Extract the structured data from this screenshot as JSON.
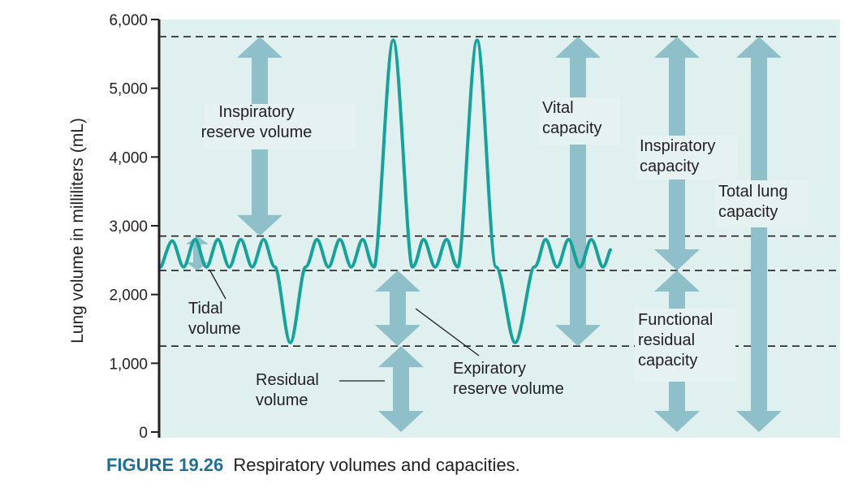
{
  "chart_data": {
    "type": "line",
    "ylabel": "Lung volume in milliliters (mL)",
    "ylim": [
      0,
      6000
    ],
    "yticks": [
      "0",
      "1,000",
      "2,000",
      "3,000",
      "4,000",
      "5,000",
      "6,000"
    ],
    "ytick_values": [
      0,
      1000,
      2000,
      3000,
      4000,
      5000,
      6000
    ],
    "reference_levels": [
      5750,
      2850,
      2350,
      1250
    ],
    "grid": false,
    "series": [
      {
        "points": [
          [
            0,
            2400
          ],
          [
            0.3,
            2780
          ],
          [
            0.6,
            2400
          ],
          [
            0.9,
            2800
          ],
          [
            1.2,
            2400
          ],
          [
            1.5,
            2800
          ],
          [
            1.8,
            2400
          ],
          [
            2.1,
            2800
          ],
          [
            2.4,
            2400
          ],
          [
            2.7,
            2800
          ],
          [
            3.0,
            2400
          ],
          [
            3.4,
            1300
          ],
          [
            3.8,
            2400
          ],
          [
            4.1,
            2800
          ],
          [
            4.4,
            2400
          ],
          [
            4.7,
            2800
          ],
          [
            5.0,
            2400
          ],
          [
            5.3,
            2800
          ],
          [
            5.6,
            2400
          ],
          [
            6.1,
            5700
          ],
          [
            6.6,
            2400
          ],
          [
            6.9,
            2800
          ],
          [
            7.2,
            2400
          ],
          [
            7.5,
            2800
          ],
          [
            7.8,
            2400
          ],
          [
            8.3,
            5700
          ],
          [
            8.8,
            2400
          ],
          [
            9.3,
            1300
          ],
          [
            9.8,
            2400
          ],
          [
            10.1,
            2800
          ],
          [
            10.4,
            2400
          ],
          [
            10.7,
            2800
          ],
          [
            11.0,
            2400
          ],
          [
            11.3,
            2800
          ],
          [
            11.6,
            2400
          ],
          [
            11.8,
            2650
          ]
        ]
      }
    ],
    "annotations": [
      {
        "name": "inspiratory-reserve-volume",
        "lines": [
          "Inspiratory",
          "reserve volume"
        ],
        "from": 2850,
        "to": 5750
      },
      {
        "name": "tidal-volume",
        "lines": [
          "Tidal",
          "volume"
        ],
        "from": 2350,
        "to": 2850
      },
      {
        "name": "expiratory-reserve-volume",
        "lines": [
          "Expiratory",
          "reserve volume"
        ],
        "from": 1250,
        "to": 2350
      },
      {
        "name": "residual-volume",
        "lines": [
          "Residual",
          "volume"
        ],
        "from": 0,
        "to": 1250
      },
      {
        "name": "vital-capacity",
        "lines": [
          "Vital",
          "capacity"
        ],
        "from": 1250,
        "to": 5750
      },
      {
        "name": "inspiratory-capacity",
        "lines": [
          "Inspiratory",
          "capacity"
        ],
        "from": 2350,
        "to": 5750
      },
      {
        "name": "functional-residual-capacity",
        "lines": [
          "Functional",
          "residual",
          "capacity"
        ],
        "from": 0,
        "to": 2350
      },
      {
        "name": "total-lung-capacity",
        "lines": [
          "Total lung",
          "capacity"
        ],
        "from": 0,
        "to": 5750
      }
    ]
  },
  "caption": {
    "number": "FIGURE 19.26",
    "text": "Respiratory volumes and capacities."
  },
  "colors": {
    "plot_background": "#dff0ef",
    "trace": "#14a39a",
    "arrow": "#8fbfc8",
    "dashed_line": "#231f20",
    "caption_number": "#1f6f99"
  }
}
